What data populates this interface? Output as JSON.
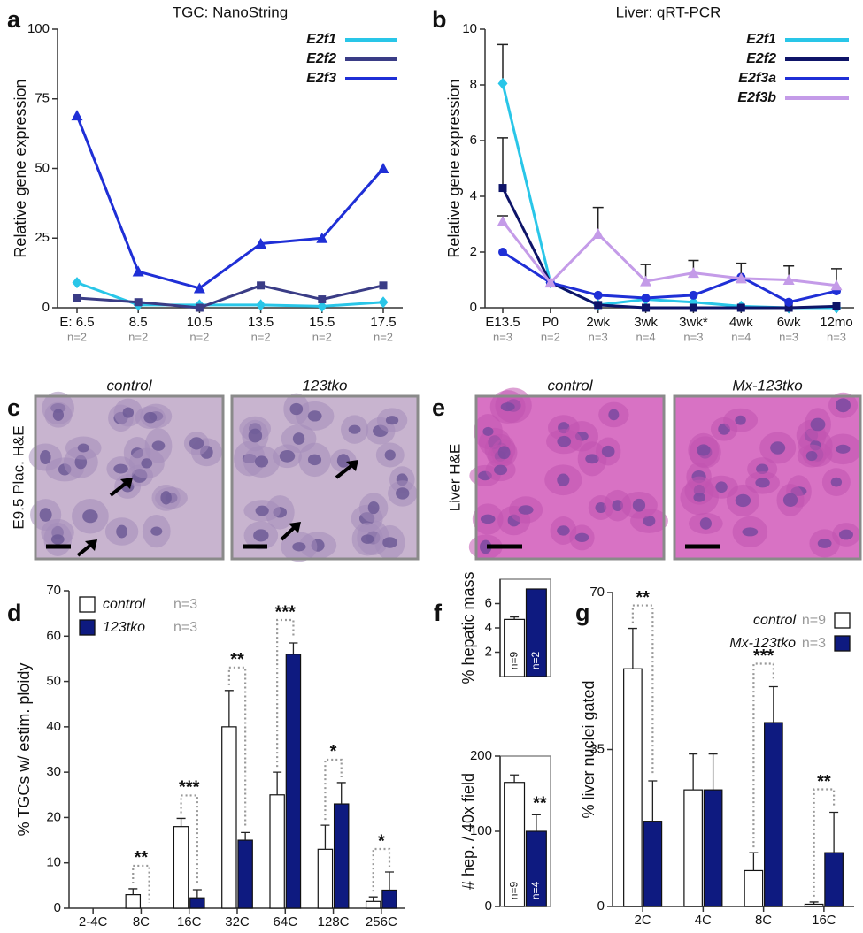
{
  "chart_data": [
    {
      "type": "line",
      "panel_label": "a",
      "title": "TGC: NanoString",
      "y_label": "Relative gene expression",
      "categories": [
        "E: 6.5",
        "8.5",
        "10.5",
        "13.5",
        "15.5",
        "17.5"
      ],
      "x_sublabels": [
        "n=2",
        "n=2",
        "n=2",
        "n=2",
        "n=2",
        "n=2"
      ],
      "ylim": [
        0,
        100
      ],
      "yticks": [
        0,
        25,
        50,
        75,
        100
      ],
      "legend": "upper right",
      "series": [
        {
          "name": "E2f1",
          "color": "#29c6e8",
          "marker": "diamond",
          "values": [
            9,
            1,
            1,
            1,
            0.5,
            2
          ]
        },
        {
          "name": "E2f2",
          "color": "#3a3c86",
          "marker": "square",
          "values": [
            3.5,
            2,
            0,
            8,
            3,
            8
          ]
        },
        {
          "name": "E2f3",
          "color": "#1f2fd6",
          "marker": "triangle",
          "values": [
            69,
            13,
            7,
            23,
            25,
            50
          ]
        }
      ]
    },
    {
      "type": "line",
      "panel_label": "b",
      "title": "Liver: qRT-PCR",
      "y_label": "Relative gene expression",
      "categories": [
        "E13.5",
        "P0",
        "2wk",
        "3wk",
        "3wk*",
        "4wk",
        "6wk",
        "12mo"
      ],
      "x_sublabels": [
        "n=3",
        "n=2",
        "n=3",
        "n=4",
        "n=3",
        "n=4",
        "n=3",
        "n=3"
      ],
      "ylim": [
        0,
        10
      ],
      "yticks": [
        0,
        2,
        4,
        6,
        8,
        10
      ],
      "legend": "upper right",
      "series": [
        {
          "name": "E2f1",
          "color": "#29c6e8",
          "marker": "diamond",
          "values": [
            8.05,
            0.9,
            0.1,
            0.3,
            0.2,
            0.05,
            0,
            0
          ],
          "errors": [
            1.4,
            null,
            null,
            null,
            null,
            null,
            null,
            null
          ]
        },
        {
          "name": "E2f2",
          "color": "#0e1468",
          "marker": "square",
          "values": [
            4.3,
            0.9,
            0.1,
            0,
            0,
            0,
            0,
            0.05
          ],
          "errors": [
            1.8,
            null,
            null,
            null,
            null,
            null,
            null,
            null
          ]
        },
        {
          "name": "E2f3a",
          "color": "#1f2fd6",
          "marker": "circle",
          "values": [
            2,
            0.9,
            0.45,
            0.35,
            0.45,
            1.1,
            0.2,
            0.6
          ],
          "errors": [
            null,
            null,
            null,
            null,
            null,
            null,
            null,
            null
          ]
        },
        {
          "name": "E2f3b",
          "color": "#c49be8",
          "marker": "triangle",
          "values": [
            3.1,
            0.9,
            2.65,
            0.95,
            1.25,
            1.05,
            1.0,
            0.8
          ],
          "errors": [
            0.2,
            null,
            0.95,
            0.6,
            0.45,
            0.55,
            0.5,
            0.6
          ]
        }
      ]
    },
    {
      "type": "bar",
      "panel_label": "d",
      "y_label": "% TGCs w/  estim. ploidy",
      "categories": [
        "2-4C",
        "8C",
        "16C",
        "32C",
        "64C",
        "128C",
        "256C"
      ],
      "ylim": [
        0,
        70
      ],
      "yticks": [
        0,
        10,
        20,
        30,
        40,
        50,
        60,
        70
      ],
      "legend": "upper left",
      "significance": [
        null,
        "**",
        "***",
        "**",
        "***",
        "*",
        "*"
      ],
      "series": [
        {
          "name": "control",
          "n_label": "n=3",
          "color": "#ffffff",
          "values": [
            0,
            3,
            18,
            40,
            25,
            13,
            1.5
          ],
          "errors": [
            null,
            1.3,
            1.8,
            8,
            5,
            5.3,
            1
          ]
        },
        {
          "name": "123tko",
          "n_label": "n=3",
          "color": "#0e1a80",
          "values": [
            0,
            0,
            2.3,
            15,
            56,
            23,
            4
          ],
          "errors": [
            null,
            null,
            1.8,
            1.7,
            2.5,
            4.7,
            4
          ]
        }
      ]
    },
    {
      "type": "bar",
      "panel_label": "f",
      "y_label": "% hepatic mass",
      "frame": true,
      "ylim": [
        0,
        8
      ],
      "yticks": [
        2,
        4,
        6
      ],
      "series": [
        {
          "color": "#ffffff",
          "values": [
            4.7
          ],
          "errors": [
            0.2
          ],
          "inside_labels": [
            "n=9"
          ]
        },
        {
          "color": "#0e1a80",
          "values": [
            7.2
          ],
          "errors": [
            null
          ],
          "inside_labels": [
            "n=2"
          ]
        }
      ]
    },
    {
      "type": "bar",
      "y_label": "# hep. / 40x field",
      "frame": true,
      "ylim": [
        0,
        200
      ],
      "yticks": [
        0,
        100,
        200
      ],
      "series": [
        {
          "color": "#ffffff",
          "values": [
            165
          ],
          "errors": [
            10
          ],
          "inside_labels": [
            "n=9"
          ]
        },
        {
          "color": "#0e1a80",
          "values": [
            100
          ],
          "errors": [
            22
          ],
          "inside_labels": [
            "n=4"
          ],
          "annotations": [
            "**"
          ]
        }
      ]
    },
    {
      "type": "bar",
      "panel_label": "g",
      "y_label": "% liver nuclei gated",
      "categories": [
        "2C",
        "4C",
        "8C",
        "16C"
      ],
      "ylim": [
        0,
        70
      ],
      "yticks": [
        0,
        35,
        70
      ],
      "legend": "upper right",
      "significance": [
        "**",
        null,
        "***",
        "**"
      ],
      "series": [
        {
          "name": "control",
          "n_label": "n=9",
          "color": "#ffffff",
          "values": [
            53,
            26,
            8,
            0.5
          ],
          "errors": [
            9,
            8,
            4,
            0.5
          ]
        },
        {
          "name": "Mx-123tko",
          "n_label": "n=3",
          "color": "#0e1a80",
          "values": [
            19,
            26,
            41,
            12
          ],
          "errors": [
            9,
            8,
            8,
            9
          ]
        }
      ]
    }
  ],
  "images": [
    {
      "panel_label": "c",
      "side_label": "E9.5 Plac. H&E",
      "captions": [
        "control",
        "123tko"
      ]
    },
    {
      "panel_label": "e",
      "side_label": "Liver H&E",
      "captions": [
        "control",
        "Mx-123tko"
      ]
    }
  ]
}
